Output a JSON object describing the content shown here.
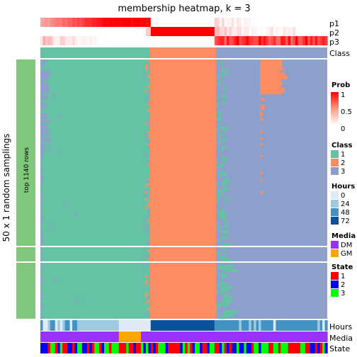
{
  "chart_data": {
    "type": "heatmap",
    "title": "membership heatmap, k = 3",
    "row_title": "50 x 1 random samplings",
    "row_subtitle": "top 1140 rows",
    "n_samples": 50,
    "columns": {
      "class1": 45,
      "class2": 26,
      "class3": 46
    },
    "tracks_top": [
      "p1",
      "p2",
      "p3",
      "Class"
    ],
    "tracks_bottom": [
      "Hours",
      "Media",
      "State"
    ],
    "legends": {
      "prob": {
        "title": "Prob",
        "ticks": [
          "1",
          "0.5",
          "0"
        ],
        "low_color": "#ffffff",
        "high_color": "#ff0000"
      },
      "class": {
        "title": "Class",
        "items": [
          {
            "label": "1",
            "color": "#66c2a5"
          },
          {
            "label": "2",
            "color": "#fc8d62"
          },
          {
            "label": "3",
            "color": "#8da0cb"
          }
        ]
      },
      "hours": {
        "title": "Hours",
        "items": [
          {
            "label": "0",
            "color": "#deebf7"
          },
          {
            "label": "24",
            "color": "#9ecae1"
          },
          {
            "label": "48",
            "color": "#4292c6"
          },
          {
            "label": "72",
            "color": "#08519c"
          }
        ]
      },
      "media": {
        "title": "Media",
        "items": [
          {
            "label": "DM",
            "color": "#9b30ff"
          },
          {
            "label": "GM",
            "color": "#ffa500"
          }
        ]
      },
      "state": {
        "title": "State",
        "items": [
          {
            "label": "1",
            "color": "#ff0000"
          },
          {
            "label": "2",
            "color": "#0000ff"
          },
          {
            "label": "3",
            "color": "#00ff00"
          }
        ]
      }
    }
  }
}
